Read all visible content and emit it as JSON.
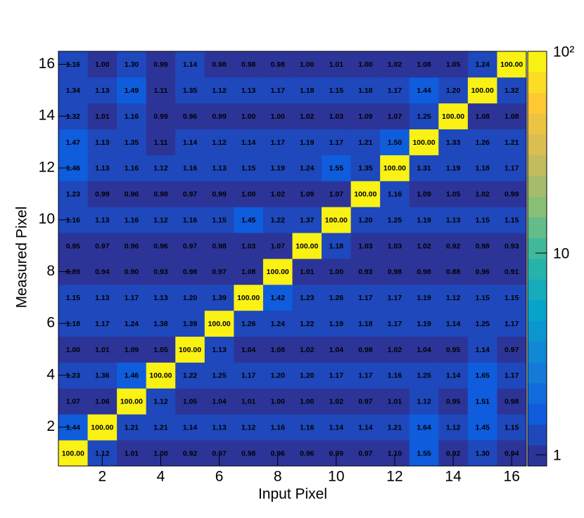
{
  "chart_data": {
    "type": "heatmap",
    "x_label": "Input Pixel",
    "y_label": "Measured Pixel",
    "x": [
      1,
      2,
      3,
      4,
      5,
      6,
      7,
      8,
      9,
      10,
      11,
      12,
      13,
      14,
      15,
      16
    ],
    "y": [
      1,
      2,
      3,
      4,
      5,
      6,
      7,
      8,
      9,
      10,
      11,
      12,
      13,
      14,
      15,
      16
    ],
    "xlim": [
      0.5,
      16.5
    ],
    "ylim": [
      0.5,
      16.5
    ],
    "xticks": [
      2,
      4,
      6,
      8,
      10,
      12,
      14,
      16
    ],
    "yticks": [
      2,
      4,
      6,
      8,
      10,
      12,
      14,
      16
    ],
    "zlim": [
      0.88,
      100
    ],
    "zscale": "log",
    "levels": 20,
    "zticks": [
      1,
      10,
      {
        "value": 100,
        "label": "10²"
      }
    ],
    "colormap": [
      "#352a87",
      "#0f5cdd",
      "#1481d6",
      "#06a4ca",
      "#2eb7a4",
      "#87bf77",
      "#d1bb59",
      "#fec832",
      "#f9fb0e"
    ],
    "values": [
      [
        100,
        1.12,
        1.01,
        1.0,
        0.92,
        0.97,
        0.98,
        0.96,
        0.96,
        0.99,
        0.97,
        1.1,
        1.55,
        0.92,
        1.3,
        0.94
      ],
      [
        1.44,
        100,
        1.21,
        1.21,
        1.14,
        1.13,
        1.12,
        1.16,
        1.16,
        1.14,
        1.14,
        1.21,
        1.64,
        1.12,
        1.45,
        1.15
      ],
      [
        1.07,
        1.06,
        100,
        1.12,
        1.05,
        1.04,
        1.01,
        1.0,
        1.0,
        1.02,
        0.97,
        1.01,
        1.12,
        0.95,
        1.51,
        0.98
      ],
      [
        1.23,
        1.36,
        1.46,
        100,
        1.22,
        1.25,
        1.17,
        1.2,
        1.2,
        1.17,
        1.17,
        1.16,
        1.25,
        1.14,
        1.65,
        1.17
      ],
      [
        1.0,
        1.01,
        1.09,
        1.05,
        100,
        1.13,
        1.04,
        1.08,
        1.02,
        1.04,
        0.98,
        1.02,
        1.04,
        0.95,
        1.14,
        0.97
      ],
      [
        1.18,
        1.17,
        1.24,
        1.38,
        1.39,
        100,
        1.26,
        1.24,
        1.22,
        1.19,
        1.18,
        1.17,
        1.19,
        1.14,
        1.25,
        1.17
      ],
      [
        1.15,
        1.13,
        1.17,
        1.13,
        1.2,
        1.39,
        100,
        1.42,
        1.23,
        1.26,
        1.17,
        1.17,
        1.19,
        1.12,
        1.15,
        1.15
      ],
      [
        0.89,
        0.94,
        0.9,
        0.93,
        0.98,
        0.97,
        1.08,
        100,
        1.01,
        1.0,
        0.93,
        0.98,
        0.98,
        0.88,
        0.96,
        0.91
      ],
      [
        0.95,
        0.97,
        0.96,
        0.96,
        0.97,
        0.98,
        1.03,
        1.07,
        100,
        1.18,
        1.03,
        1.03,
        1.02,
        0.92,
        0.98,
        0.93
      ],
      [
        1.16,
        1.13,
        1.16,
        1.12,
        1.16,
        1.15,
        1.45,
        1.22,
        1.37,
        100,
        1.2,
        1.25,
        1.19,
        1.13,
        1.15,
        1.15
      ],
      [
        1.23,
        0.99,
        0.96,
        0.98,
        0.97,
        0.99,
        1.0,
        1.02,
        1.09,
        1.07,
        100,
        1.16,
        1.09,
        1.05,
        1.02,
        0.99
      ],
      [
        1.46,
        1.13,
        1.16,
        1.12,
        1.16,
        1.13,
        1.15,
        1.19,
        1.24,
        1.55,
        1.35,
        100,
        1.31,
        1.19,
        1.18,
        1.17
      ],
      [
        1.47,
        1.13,
        1.35,
        1.11,
        1.14,
        1.12,
        1.14,
        1.17,
        1.19,
        1.17,
        1.21,
        1.5,
        100,
        1.33,
        1.26,
        1.21
      ],
      [
        1.32,
        1.01,
        1.16,
        0.99,
        0.96,
        0.99,
        1.0,
        1.0,
        1.02,
        1.03,
        1.09,
        1.07,
        1.25,
        100,
        1.08,
        1.08
      ],
      [
        1.34,
        1.13,
        1.49,
        1.11,
        1.35,
        1.12,
        1.13,
        1.17,
        1.18,
        1.15,
        1.18,
        1.17,
        1.44,
        1.2,
        100,
        1.32
      ],
      [
        1.16,
        1.0,
        1.3,
        0.99,
        1.14,
        0.98,
        0.98,
        0.98,
        1.0,
        1.01,
        1.0,
        1.02,
        1.08,
        1.05,
        1.24,
        100
      ]
    ],
    "value_labels": [
      [
        "100.00",
        "1.12",
        "1.01",
        "1.00",
        "0.92",
        "0.97",
        "0.98",
        "0.96",
        "0.96",
        "0.99",
        "0.97",
        "1.10",
        "1.55",
        "0.92",
        "1.30",
        "0.94"
      ],
      [
        "1.44",
        "100.00",
        "1.21",
        "1.21",
        "1.14",
        "1.13",
        "1.12",
        "1.16",
        "1.16",
        "1.14",
        "1.14",
        "1.21",
        "1.64",
        "1.12",
        "1.45",
        "1.15"
      ],
      [
        "1.07",
        "1.06",
        "100.00",
        "1.12",
        "1.05",
        "1.04",
        "1.01",
        "1.00",
        "1.00",
        "1.02",
        "0.97",
        "1.01",
        "1.12",
        "0.95",
        "1.51",
        "0.98"
      ],
      [
        "1.23",
        "1.36",
        "1.46",
        "100.00",
        "1.22",
        "1.25",
        "1.17",
        "1.20",
        "1.20",
        "1.17",
        "1.17",
        "1.16",
        "1.25",
        "1.14",
        "1.65",
        "1.17"
      ],
      [
        "1.00",
        "1.01",
        "1.09",
        "1.05",
        "100.00",
        "1.13",
        "1.04",
        "1.08",
        "1.02",
        "1.04",
        "0.98",
        "1.02",
        "1.04",
        "0.95",
        "1.14",
        "0.97"
      ],
      [
        "1.18",
        "1.17",
        "1.24",
        "1.38",
        "1.39",
        "100.00",
        "1.26",
        "1.24",
        "1.22",
        "1.19",
        "1.18",
        "1.17",
        "1.19",
        "1.14",
        "1.25",
        "1.17"
      ],
      [
        "1.15",
        "1.13",
        "1.17",
        "1.13",
        "1.20",
        "1.39",
        "100.00",
        "1.42",
        "1.23",
        "1.26",
        "1.17",
        "1.17",
        "1.19",
        "1.12",
        "1.15",
        "1.15"
      ],
      [
        "0.89",
        "0.94",
        "0.90",
        "0.93",
        "0.98",
        "0.97",
        "1.08",
        "100.00",
        "1.01",
        "1.00",
        "0.93",
        "0.98",
        "0.98",
        "0.88",
        "0.96",
        "0.91"
      ],
      [
        "0.95",
        "0.97",
        "0.96",
        "0.96",
        "0.97",
        "0.98",
        "1.03",
        "1.07",
        "100.00",
        "1.18",
        "1.03",
        "1.03",
        "1.02",
        "0.92",
        "0.98",
        "0.93"
      ],
      [
        "1.16",
        "1.13",
        "1.16",
        "1.12",
        "1.16",
        "1.15",
        "1.45",
        "1.22",
        "1.37",
        "100.00",
        "1.20",
        "1.25",
        "1.19",
        "1.13",
        "1.15",
        "1.15"
      ],
      [
        "1.23",
        "0.99",
        "0.96",
        "0.98",
        "0.97",
        "0.99",
        "1.00",
        "1.02",
        "1.09",
        "1.07",
        "100.00",
        "1.16",
        "1.09",
        "1.05",
        "1.02",
        "0.99"
      ],
      [
        "1.46",
        "1.13",
        "1.16",
        "1.12",
        "1.16",
        "1.13",
        "1.15",
        "1.19",
        "1.24",
        "1.55",
        "1.35",
        "100.00",
        "1.31",
        "1.19",
        "1.18",
        "1.17"
      ],
      [
        "1.47",
        "1.13",
        "1.35",
        "1.11",
        "1.14",
        "1.12",
        "1.14",
        "1.17",
        "1.19",
        "1.17",
        "1.21",
        "1.50",
        "100.00",
        "1.33",
        "1.26",
        "1.21"
      ],
      [
        "1.32",
        "1.01",
        "1.16",
        "0.99",
        "0.96",
        "0.99",
        "1.00",
        "1.00",
        "1.02",
        "1.03",
        "1.09",
        "1.07",
        "1.25",
        "100.00",
        "1.08",
        "1.08"
      ],
      [
        "1.34",
        "1.13",
        "1.49",
        "1.11",
        "1.35",
        "1.12",
        "1.13",
        "1.17",
        "1.18",
        "1.15",
        "1.18",
        "1.17",
        "1.44",
        "1.20",
        "100.00",
        "1.32"
      ],
      [
        "1.16",
        "1.00",
        "1.30",
        "0.99",
        "1.14",
        "0.98",
        "0.98",
        "0.98",
        "1.00",
        "1.01",
        "1.00",
        "1.02",
        "1.08",
        "1.05",
        "1.24",
        "100.00"
      ]
    ]
  }
}
